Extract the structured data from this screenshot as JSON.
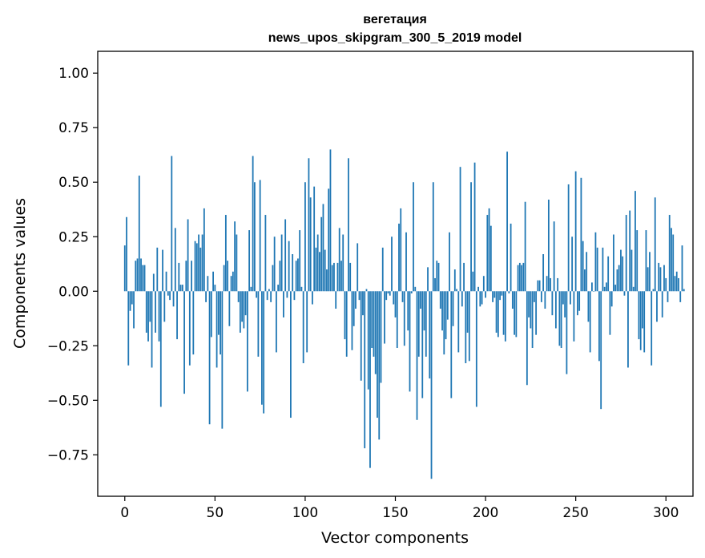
{
  "chart_data": {
    "type": "bar",
    "title_line1": "вегетация",
    "title_line2": "news_upos_skipgram_300_5_2019 model",
    "xlabel": "Vector components",
    "ylabel": "Components values",
    "xlim": [
      -15,
      315
    ],
    "ylim": [
      -0.94,
      1.1
    ],
    "xticks": [
      0,
      50,
      100,
      150,
      200,
      250,
      300
    ],
    "xtick_labels": [
      "0",
      "50",
      "100",
      "150",
      "200",
      "250",
      "300"
    ],
    "yticks": [
      1.0,
      0.75,
      0.5,
      0.25,
      0.0,
      -0.25,
      -0.5,
      -0.75
    ],
    "ytick_labels": [
      "1.00",
      "0.75",
      "0.50",
      "0.25",
      "0.00",
      "−0.25",
      "−0.50",
      "−0.75"
    ],
    "bar_color": "#1f77b4",
    "grid": false,
    "values": [
      0.21,
      0.34,
      -0.34,
      -0.09,
      -0.06,
      -0.17,
      0.14,
      0.15,
      0.53,
      0.15,
      0.12,
      0.12,
      -0.19,
      -0.23,
      -0.14,
      -0.35,
      0.08,
      -0.19,
      0.2,
      -0.23,
      -0.53,
      0.19,
      -0.14,
      0.09,
      -0.02,
      -0.04,
      0.62,
      -0.07,
      0.29,
      -0.22,
      0.13,
      0.03,
      0.03,
      -0.47,
      0.14,
      0.33,
      -0.34,
      0.14,
      -0.29,
      0.23,
      0.22,
      0.26,
      0.2,
      0.26,
      0.38,
      -0.05,
      0.07,
      -0.61,
      -0.21,
      0.09,
      0.03,
      -0.35,
      -0.2,
      -0.29,
      -0.63,
      0.12,
      0.35,
      0.14,
      -0.16,
      0.07,
      0.09,
      0.32,
      0.26,
      -0.05,
      -0.19,
      -0.14,
      -0.17,
      -0.11,
      -0.46,
      0.28,
      0.02,
      0.62,
      0.5,
      -0.03,
      -0.3,
      0.51,
      -0.52,
      -0.56,
      0.35,
      -0.04,
      0.01,
      -0.05,
      0.12,
      0.25,
      -0.28,
      0.03,
      0.14,
      0.26,
      -0.12,
      0.33,
      -0.03,
      0.23,
      -0.58,
      0.17,
      -0.04,
      0.14,
      0.15,
      0.28,
      0.02,
      -0.33,
      0.5,
      -0.28,
      0.61,
      0.43,
      -0.06,
      0.48,
      0.2,
      0.26,
      0.18,
      0.34,
      0.4,
      0.19,
      0.1,
      0.47,
      0.65,
      0.12,
      0.13,
      -0.08,
      0.13,
      0.29,
      0.14,
      0.26,
      -0.22,
      -0.3,
      0.61,
      0.13,
      -0.27,
      -0.16,
      -0.08,
      0.22,
      -0.04,
      -0.41,
      -0.11,
      -0.72,
      0.01,
      -0.45,
      -0.81,
      -0.26,
      -0.3,
      -0.38,
      -0.58,
      -0.68,
      -0.42,
      0.2,
      -0.24,
      -0.04,
      -0.01,
      -0.02,
      0.25,
      -0.06,
      -0.12,
      -0.26,
      0.31,
      0.38,
      -0.05,
      -0.25,
      0.27,
      -0.18,
      -0.46,
      -0.01,
      0.5,
      0.02,
      -0.59,
      -0.3,
      -0.08,
      -0.49,
      -0.18,
      -0.3,
      0.11,
      -0.4,
      -0.86,
      0.5,
      0.06,
      0.14,
      0.13,
      -0.08,
      -0.18,
      -0.29,
      -0.22,
      -0.13,
      0.27,
      -0.49,
      -0.16,
      0.1,
      0.01,
      -0.28,
      0.57,
      -0.07,
      0.13,
      -0.33,
      -0.19,
      -0.32,
      0.5,
      0.09,
      0.59,
      -0.53,
      0.02,
      -0.07,
      -0.06,
      0.07,
      -0.03,
      0.35,
      0.38,
      0.3,
      -0.05,
      -0.03,
      -0.19,
      -0.21,
      -0.04,
      -0.02,
      -0.2,
      -0.23,
      0.64,
      -0.01,
      0.31,
      -0.08,
      -0.2,
      -0.21,
      0.12,
      0.13,
      0.12,
      0.13,
      0.41,
      -0.43,
      -0.12,
      -0.17,
      -0.26,
      -0.05,
      -0.2,
      0.05,
      0.05,
      -0.05,
      0.17,
      -0.08,
      0.07,
      0.42,
      0.06,
      -0.11,
      0.32,
      -0.17,
      0.06,
      -0.25,
      -0.26,
      -0.06,
      -0.12,
      -0.38,
      0.49,
      -0.06,
      0.25,
      -0.23,
      0.55,
      -0.11,
      -0.09,
      0.52,
      0.23,
      0.1,
      0.18,
      -0.14,
      -0.28,
      0.04,
      0.0,
      0.27,
      0.2,
      -0.32,
      -0.54,
      0.2,
      0.02,
      0.04,
      0.16,
      -0.2,
      -0.07,
      0.26,
      0.03,
      0.1,
      0.12,
      0.19,
      0.16,
      -0.02,
      0.35,
      -0.35,
      0.37,
      0.19,
      0.02,
      0.46,
      0.28,
      -0.22,
      -0.27,
      -0.17,
      -0.28,
      0.28,
      0.11,
      0.18,
      -0.34,
      0.01,
      0.43,
      -0.14,
      0.13,
      0.11,
      -0.12,
      0.12,
      0.06,
      -0.05,
      0.35,
      0.29,
      0.26,
      0.07,
      0.09,
      0.06,
      -0.05,
      0.21,
      0.01
    ]
  }
}
